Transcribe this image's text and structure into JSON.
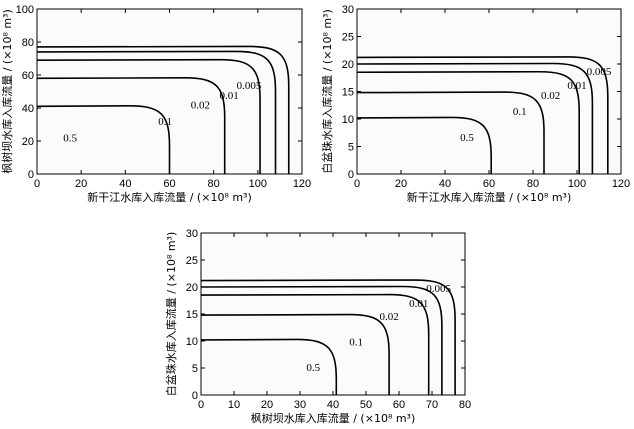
{
  "chart_data": [
    {
      "type": "contour",
      "xlabel": "新干江水库入库流量 / (×10⁸ m³)",
      "ylabel": "枫树坝水库入库流量 / (×10⁸ m³)",
      "xlim": [
        0,
        120
      ],
      "ylim": [
        0,
        100
      ],
      "xticks": [
        "0",
        "20",
        "40",
        "60",
        "80",
        "100",
        "120"
      ],
      "yticks": [
        "0",
        "20",
        "40",
        "60",
        "80",
        "100"
      ],
      "contours": [
        {
          "label": "0.5",
          "x_limit": 60,
          "y_limit": 41,
          "label_at": [
            15,
            22
          ]
        },
        {
          "label": "0.1",
          "x_limit": 85,
          "y_limit": 58,
          "label_at": [
            58,
            32
          ]
        },
        {
          "label": "0.02",
          "x_limit": 101,
          "y_limit": 69,
          "label_at": [
            74,
            42
          ]
        },
        {
          "label": "0.01",
          "x_limit": 108,
          "y_limit": 74,
          "label_at": [
            87,
            48
          ]
        },
        {
          "label": "0.005",
          "x_limit": 114,
          "y_limit": 77,
          "label_at": [
            96,
            54
          ]
        }
      ]
    },
    {
      "type": "contour",
      "xlabel": "新干江水库入库流量 / (×10⁸ m³)",
      "ylabel": "白盆珠水库入库流量 / (×10⁸ m³)",
      "xlim": [
        0,
        120
      ],
      "ylim": [
        0,
        30
      ],
      "xticks": [
        "0",
        "20",
        "40",
        "60",
        "80",
        "100",
        "120"
      ],
      "yticks": [
        "0",
        "5",
        "10",
        "15",
        "20",
        "25",
        "30"
      ],
      "contours": [
        {
          "label": "0.5",
          "x_limit": 61,
          "y_limit": 10.2,
          "label_at": [
            50,
            6.7
          ]
        },
        {
          "label": "0.1",
          "x_limit": 85,
          "y_limit": 14.8,
          "label_at": [
            74,
            11.5
          ]
        },
        {
          "label": "0.02",
          "x_limit": 101,
          "y_limit": 18.5,
          "label_at": [
            88,
            14.4
          ]
        },
        {
          "label": "0.01",
          "x_limit": 107,
          "y_limit": 20.0,
          "label_at": [
            100,
            16.2
          ]
        },
        {
          "label": "0.005",
          "x_limit": 114,
          "y_limit": 21.2,
          "label_at": [
            110,
            18.7
          ]
        }
      ]
    },
    {
      "type": "contour",
      "xlabel": "枫树坝水库入库流量 / (×10⁸ m³)",
      "ylabel": "白盆珠水库入库流量 / (×10⁸ m³)",
      "xlim": [
        0,
        80
      ],
      "ylim": [
        0,
        30
      ],
      "xticks": [
        "0",
        "10",
        "20",
        "30",
        "40",
        "50",
        "60",
        "70",
        "80"
      ],
      "yticks": [
        "0",
        "5",
        "10",
        "15",
        "20",
        "25",
        "30"
      ],
      "contours": [
        {
          "label": "0.5",
          "x_limit": 41,
          "y_limit": 10.2,
          "label_at": [
            34,
            5.2
          ]
        },
        {
          "label": "0.1",
          "x_limit": 57,
          "y_limit": 14.8,
          "label_at": [
            47,
            9.9
          ]
        },
        {
          "label": "0.02",
          "x_limit": 69,
          "y_limit": 18.5,
          "label_at": [
            57,
            14.6
          ]
        },
        {
          "label": "0.01",
          "x_limit": 73,
          "y_limit": 20.0,
          "label_at": [
            66,
            17.0
          ]
        },
        {
          "label": "0.005",
          "x_limit": 77,
          "y_limit": 21.2,
          "label_at": [
            72,
            19.8
          ]
        }
      ]
    }
  ]
}
